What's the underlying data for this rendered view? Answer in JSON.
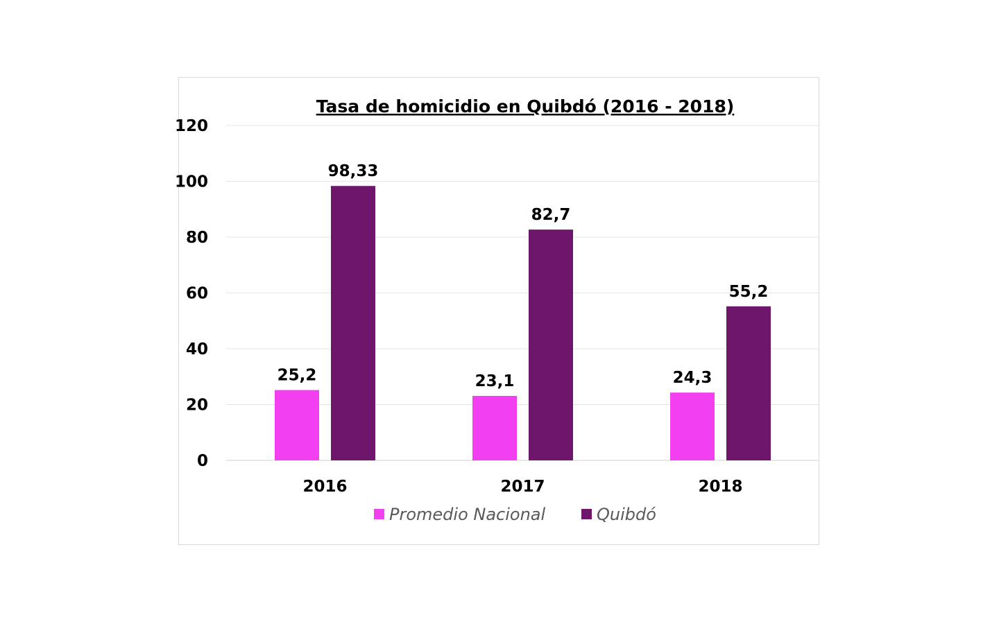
{
  "chart_data": {
    "type": "bar",
    "title": "Tasa de homicidio en Quibdó (2016 - 2018)",
    "categories": [
      "2016",
      "2017",
      "2018"
    ],
    "series": [
      {
        "name": "Promedio Nacional",
        "values": [
          25.2,
          23.1,
          24.3
        ],
        "labels": [
          "25,2",
          "23,1",
          "24,3"
        ],
        "color": "#f23ff0"
      },
      {
        "name": "Quibdó",
        "values": [
          98.33,
          82.7,
          55.2
        ],
        "labels": [
          "98,33",
          "82,7",
          "55,2"
        ],
        "color": "#6e166c"
      }
    ],
    "ylim": [
      0,
      120
    ],
    "yticks": [
      "0",
      "20",
      "40",
      "60",
      "80",
      "100",
      "120"
    ],
    "ytick_values": [
      0,
      20,
      40,
      60,
      80,
      100,
      120
    ],
    "grid": true,
    "legend": "bottom"
  }
}
